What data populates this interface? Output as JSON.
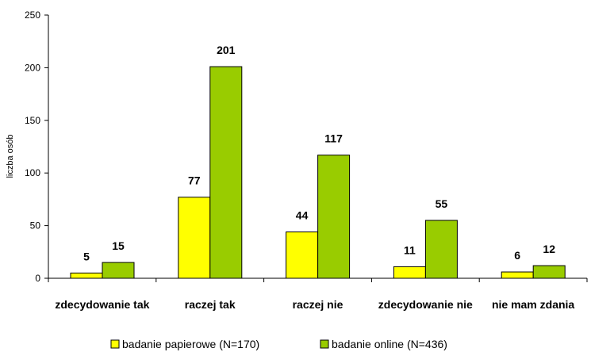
{
  "chart_data": {
    "type": "bar",
    "title": "",
    "xlabel": "",
    "ylabel": "liczba osób",
    "ylim": [
      0,
      250
    ],
    "yticks": [
      0,
      50,
      100,
      150,
      200,
      250
    ],
    "categories": [
      "zdecydowanie tak",
      "raczej tak",
      "raczej nie",
      "zdecydowanie nie",
      "nie mam zdania"
    ],
    "series": [
      {
        "name": "badanie papierowe (N=170)",
        "color": "#ffff00",
        "values": [
          5,
          77,
          44,
          11,
          6
        ]
      },
      {
        "name": "badanie online (N=436)",
        "color": "#99cc00",
        "values": [
          15,
          201,
          117,
          55,
          12
        ]
      }
    ],
    "grid": false,
    "legend": "bottom"
  }
}
